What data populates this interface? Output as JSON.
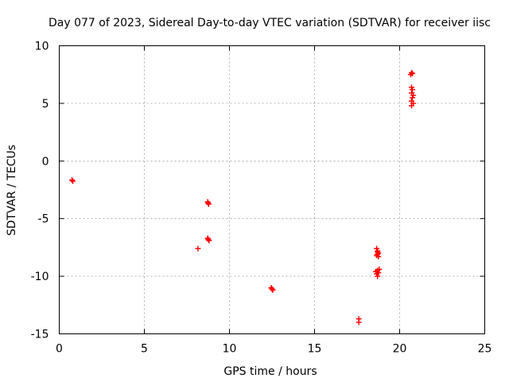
{
  "chart_data": {
    "type": "scatter",
    "title": "Day 077 of 2023, Sidereal Day-to-day VTEC variation (SDTVAR) for receiver iisc",
    "xlabel": "GPS time / hours",
    "ylabel": "SDTVAR / TECUs",
    "xlim": [
      0,
      25
    ],
    "ylim": [
      -15,
      10
    ],
    "xticks": [
      "0",
      "5",
      "10",
      "15",
      "20",
      "25"
    ],
    "yticks": [
      "10",
      "5",
      "0",
      "-5",
      "-10",
      "-15"
    ],
    "grid": true,
    "marker": "+",
    "color": "#ff0000",
    "series": [
      {
        "name": "SDTVAR",
        "x": [
          0.75,
          0.8,
          8.15,
          8.72,
          8.75,
          8.78,
          8.72,
          8.75,
          8.8,
          12.45,
          12.5,
          12.55,
          17.6,
          17.6,
          18.65,
          18.7,
          18.75,
          18.65,
          18.7,
          18.75,
          18.7,
          18.6,
          18.65,
          18.7,
          18.75,
          18.8,
          18.7,
          20.65,
          20.7,
          20.75,
          20.7,
          20.75,
          20.7,
          20.8,
          20.75,
          20.7,
          20.8,
          20.7
        ],
        "y": [
          -1.65,
          -1.75,
          -7.6,
          -3.55,
          -3.65,
          -3.75,
          -6.7,
          -6.8,
          -6.9,
          -11.0,
          -11.1,
          -11.2,
          -13.7,
          -14.0,
          -7.6,
          -7.8,
          -8.0,
          -8.2,
          -7.9,
          -8.3,
          -8.1,
          -9.6,
          -9.8,
          -9.5,
          -9.7,
          -9.4,
          -10.0,
          7.5,
          7.65,
          7.6,
          6.4,
          6.2,
          5.9,
          5.7,
          5.5,
          5.2,
          5.0,
          4.8
        ]
      }
    ]
  }
}
